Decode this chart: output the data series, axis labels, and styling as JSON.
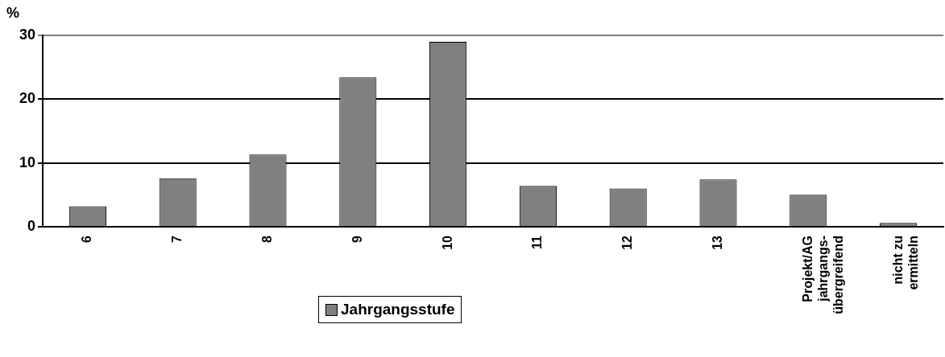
{
  "chart_data": {
    "type": "bar",
    "ylabel": "%",
    "categories": [
      "6",
      "7",
      "8",
      "9",
      "10",
      "11",
      "12",
      "13",
      "Projekt/AG\njahrgangs-\nübergreifend",
      "nicht zu\nermitteln"
    ],
    "series": [
      {
        "name": "Jahrgangsstufe",
        "color": "#808080",
        "values": [
          3.2,
          7.6,
          11.3,
          23.4,
          29.0,
          6.4,
          6.0,
          7.4,
          5.0,
          0.6
        ]
      }
    ],
    "ylim": [
      0,
      30
    ],
    "yticks": [
      0,
      10,
      20,
      30
    ],
    "grid": "y",
    "legend": "bottom"
  }
}
